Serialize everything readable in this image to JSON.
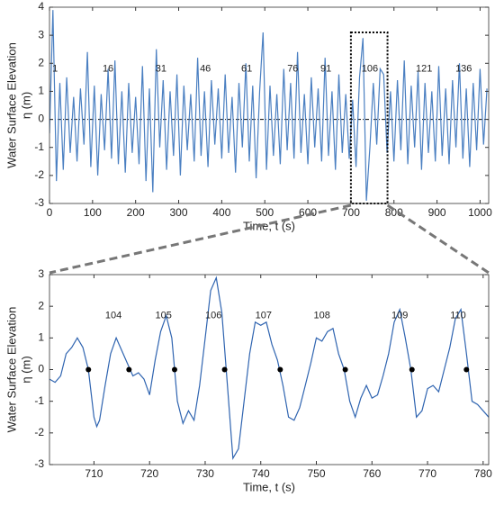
{
  "chart_data": [
    {
      "type": "line",
      "xlabel": "Time, t (s)",
      "ylabel": [
        "Water Surface Elevation",
        "η (m)"
      ],
      "xlim": [
        0,
        1020
      ],
      "ylim": [
        -3,
        4
      ],
      "xticks": [
        0,
        100,
        200,
        300,
        400,
        500,
        600,
        700,
        800,
        900,
        1000
      ],
      "yticks": [
        -3,
        -2,
        -1,
        0,
        1,
        2,
        3,
        4
      ],
      "color": "#4a7fc1",
      "hline": 0,
      "x": [
        0,
        8,
        16,
        24,
        32,
        40,
        48,
        56,
        64,
        72,
        80,
        88,
        96,
        104,
        112,
        120,
        128,
        136,
        144,
        152,
        160,
        168,
        176,
        184,
        192,
        200,
        208,
        216,
        224,
        232,
        240,
        248,
        256,
        264,
        272,
        280,
        288,
        296,
        304,
        312,
        320,
        328,
        336,
        344,
        352,
        360,
        368,
        376,
        384,
        392,
        400,
        408,
        416,
        424,
        432,
        440,
        448,
        456,
        464,
        472,
        480,
        488,
        496,
        504,
        512,
        520,
        528,
        536,
        544,
        552,
        560,
        568,
        576,
        584,
        592,
        600,
        608,
        616,
        624,
        632,
        640,
        648,
        656,
        664,
        672,
        680,
        688,
        696,
        704,
        712,
        720,
        728,
        736,
        744,
        752,
        760,
        768,
        776,
        784,
        792,
        800,
        808,
        816,
        824,
        832,
        840,
        848,
        856,
        864,
        872,
        880,
        888,
        896,
        904,
        912,
        920,
        928,
        936,
        944,
        952,
        960,
        968,
        976,
        984,
        992,
        1000,
        1008,
        1016
      ],
      "values": [
        -0.5,
        3.9,
        -2.2,
        1.3,
        -1.8,
        1.5,
        -1.2,
        0.8,
        -1.5,
        1.1,
        -0.9,
        2.4,
        -1.7,
        1.2,
        -2.0,
        0.9,
        -1.1,
        1.8,
        -1.4,
        2.1,
        -1.6,
        1.0,
        -1.9,
        1.3,
        -1.2,
        0.8,
        -1.6,
        1.9,
        -2.2,
        1.1,
        -2.6,
        2.5,
        -1.0,
        1.4,
        -1.8,
        1.0,
        -1.3,
        1.6,
        -2.0,
        1.2,
        -1.1,
        0.9,
        -1.5,
        2.2,
        -1.3,
        1.0,
        -1.7,
        1.4,
        -0.9,
        1.1,
        -1.4,
        1.6,
        -1.2,
        0.8,
        -1.9,
        1.3,
        -1.0,
        2.0,
        -1.5,
        1.2,
        -2.1,
        1.0,
        3.1,
        -1.8,
        1.2,
        -1.3,
        0.9,
        -1.6,
        1.8,
        -1.1,
        1.3,
        -1.4,
        2.4,
        -1.2,
        0.9,
        -1.6,
        1.5,
        -1.0,
        1.1,
        -1.5,
        2.2,
        -1.3,
        1.0,
        -1.8,
        1.6,
        -1.2,
        0.9,
        -1.4,
        0.7,
        -1.7,
        1.5,
        2.9,
        -2.9,
        -1.0,
        1.3,
        -0.9,
        1.8,
        1.6,
        -1.2,
        1.0,
        -1.5,
        1.4,
        -1.1,
        2.1,
        -1.6,
        1.2,
        -1.0,
        1.7,
        -1.8,
        1.3,
        -1.2,
        1.0,
        -1.5,
        1.9,
        -1.3,
        1.1,
        -1.6,
        1.4,
        -1.0,
        2.0,
        -1.4,
        1.1,
        -1.7,
        1.3,
        -1.1,
        1.8,
        -0.9,
        1.1
      ],
      "annotations": [
        {
          "text": "1",
          "x": 13,
          "y": 1.8
        },
        {
          "text": "16",
          "x": 136,
          "y": 1.8
        },
        {
          "text": "31",
          "x": 259,
          "y": 1.8
        },
        {
          "text": "46",
          "x": 362,
          "y": 1.8
        },
        {
          "text": "61",
          "x": 458,
          "y": 1.8
        },
        {
          "text": "76",
          "x": 565,
          "y": 1.8
        },
        {
          "text": "91",
          "x": 642,
          "y": 1.8
        },
        {
          "text": "106",
          "x": 744,
          "y": 1.8
        },
        {
          "text": "121",
          "x": 870,
          "y": 1.8
        },
        {
          "text": "136",
          "x": 962,
          "y": 1.8
        }
      ],
      "zoom_box": {
        "xlim": [
          700,
          785
        ],
        "ylim": [
          -3,
          3.1
        ]
      }
    },
    {
      "type": "line",
      "xlabel": "Time, t (s)",
      "ylabel": [
        "Water Surface Elevation",
        "η (m)"
      ],
      "xlim": [
        702,
        781
      ],
      "ylim": [
        -3,
        3
      ],
      "xticks": [
        710,
        720,
        730,
        740,
        750,
        760,
        770,
        780
      ],
      "yticks": [
        -3,
        -2,
        -1,
        0,
        1,
        2,
        3
      ],
      "color": "#2f64b0",
      "x": [
        702,
        703,
        704,
        705,
        706,
        707,
        708,
        709,
        710,
        710.5,
        711,
        712,
        713,
        714,
        715,
        716,
        717,
        718,
        719,
        720,
        721,
        722,
        723,
        724,
        725,
        726,
        727,
        728,
        729,
        730,
        731,
        732,
        733,
        734,
        735,
        736,
        737,
        738,
        739,
        740,
        741,
        742,
        743,
        744,
        745,
        746,
        747,
        748,
        749,
        750,
        751,
        752,
        753,
        754,
        755,
        756,
        757,
        758,
        759,
        760,
        761,
        762,
        763,
        764,
        765,
        766,
        767,
        768,
        769,
        770,
        771,
        772,
        773,
        774,
        775,
        776,
        777,
        778,
        779,
        780,
        781
      ],
      "values": [
        -0.3,
        -0.4,
        -0.2,
        0.5,
        0.7,
        1.0,
        0.7,
        0.0,
        -1.5,
        -1.8,
        -1.6,
        -0.5,
        0.5,
        1.0,
        0.6,
        0.2,
        -0.2,
        -0.1,
        -0.3,
        -0.8,
        0.3,
        1.2,
        1.7,
        1.0,
        -1.0,
        -1.7,
        -1.3,
        -1.6,
        -0.5,
        1.0,
        2.5,
        2.9,
        1.8,
        -0.5,
        -2.8,
        -2.5,
        -1.0,
        0.5,
        1.5,
        1.4,
        1.5,
        0.8,
        0.3,
        -0.5,
        -1.5,
        -1.6,
        -1.2,
        -0.5,
        0.2,
        1.0,
        0.9,
        1.2,
        1.3,
        0.5,
        0.0,
        -1.0,
        -1.5,
        -0.9,
        -0.5,
        -0.9,
        -0.8,
        -0.2,
        0.5,
        1.5,
        1.9,
        1.0,
        0.0,
        -1.5,
        -1.3,
        -0.6,
        -0.5,
        -0.7,
        0.0,
        0.7,
        1.6,
        1.9,
        0.5,
        -1.0,
        -1.1,
        -1.3,
        -1.5
      ],
      "points": {
        "x": [
          709,
          716.3,
          724.5,
          733.5,
          743.5,
          755.2,
          767.2,
          777
        ],
        "values": [
          0,
          0,
          0,
          0,
          0,
          0,
          0,
          0
        ],
        "color": "#000000"
      },
      "annotations": [
        {
          "text": "104",
          "x": 713.5,
          "y": 1.7
        },
        {
          "text": "105",
          "x": 722.5,
          "y": 1.7
        },
        {
          "text": "106",
          "x": 731.5,
          "y": 1.7
        },
        {
          "text": "107",
          "x": 740.5,
          "y": 1.7
        },
        {
          "text": "108",
          "x": 751,
          "y": 1.7
        },
        {
          "text": "109",
          "x": 765,
          "y": 1.7
        },
        {
          "text": "110",
          "x": 775.5,
          "y": 1.7
        }
      ]
    }
  ]
}
